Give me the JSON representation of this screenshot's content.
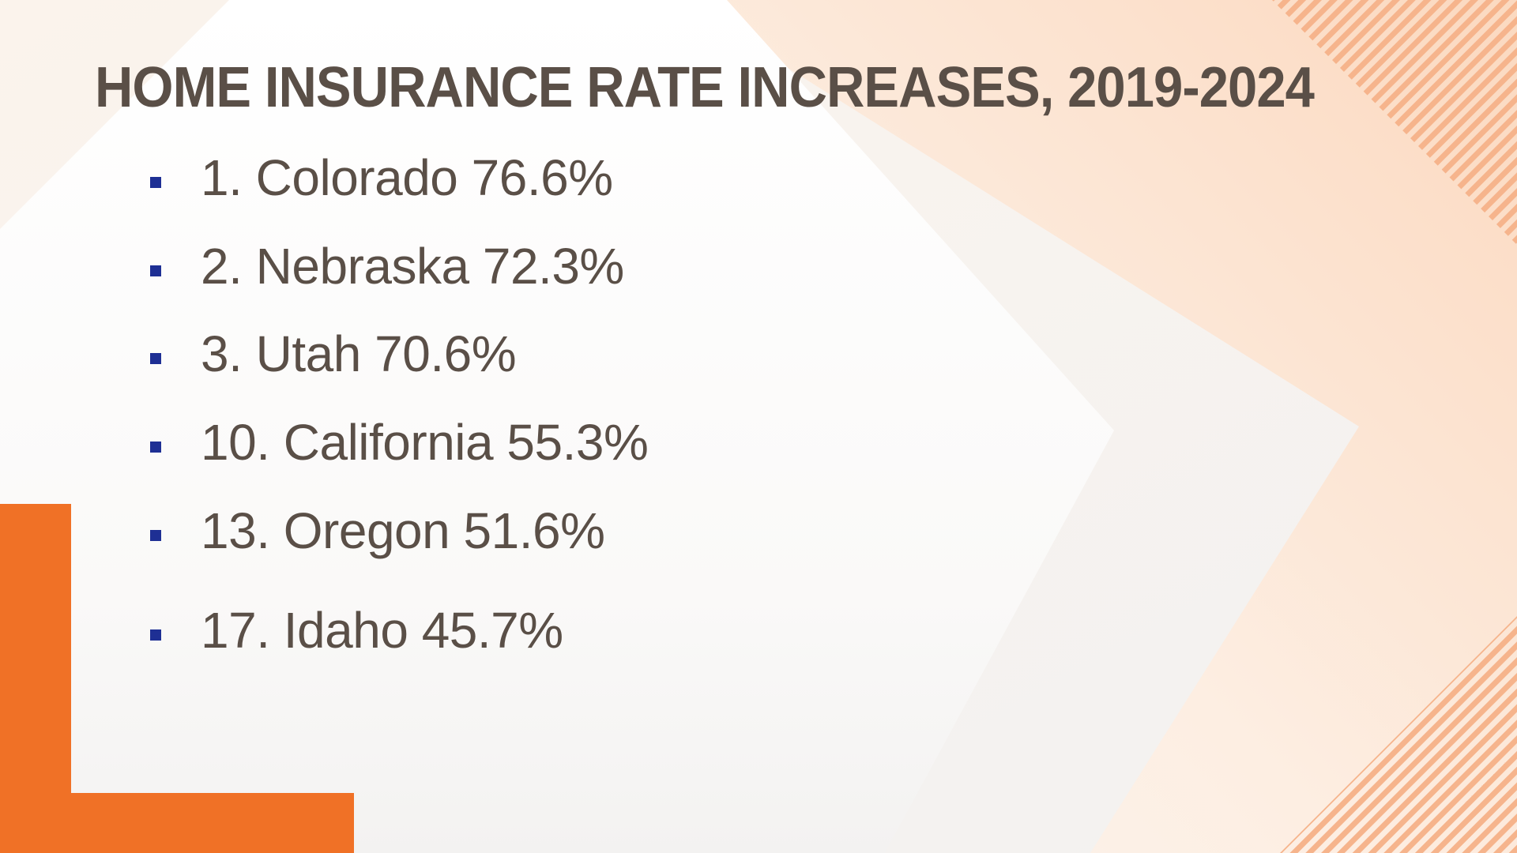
{
  "slide": {
    "title": "HOME INSURANCE RATE INCREASES, 2019-2024",
    "items": [
      {
        "text": "1. Colorado 76.6%"
      },
      {
        "text": "2. Nebraska 72.3%"
      },
      {
        "text": "3. Utah 70.6%"
      },
      {
        "text": "10. California 55.3%"
      },
      {
        "text": "13. Oregon 51.6%"
      },
      {
        "text": "17. Idaho 45.7%"
      }
    ]
  },
  "colors": {
    "accent_orange": "#f07126",
    "bullet_blue": "#1e2f94",
    "text_brown": "#5a4f47",
    "stripe_peach": "#f6b48c"
  }
}
